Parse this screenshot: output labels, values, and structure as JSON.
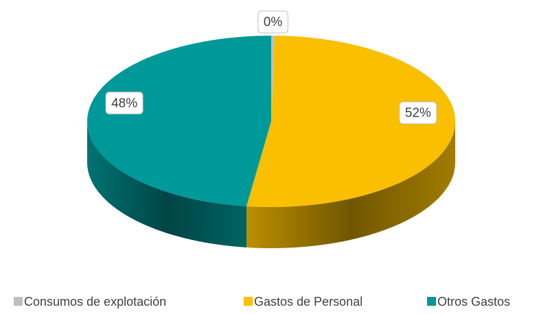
{
  "chart_data": {
    "type": "pie3d",
    "categories": [
      "Consumos de explotación",
      "Gastos de Personal",
      "Otros Gastos"
    ],
    "values": [
      0.3,
      52,
      48
    ],
    "value_labels": [
      "0%",
      "52%",
      "48%"
    ],
    "colors": [
      "#bfbfbf",
      "#f9bf00",
      "#009999"
    ],
    "legend": "bottom"
  }
}
